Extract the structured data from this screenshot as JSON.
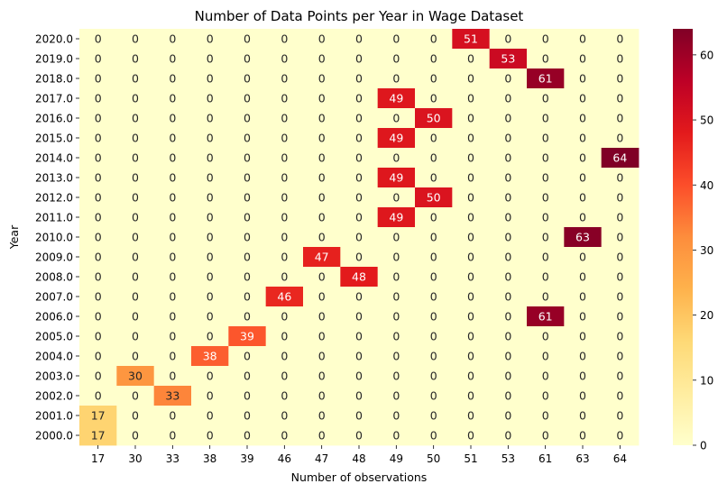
{
  "chart_data": {
    "type": "heatmap",
    "title": "Number of Data Points per Year in Wage Dataset",
    "xlabel": "Number of observations",
    "ylabel": "Year",
    "x_categories": [
      "17",
      "30",
      "33",
      "38",
      "39",
      "46",
      "47",
      "48",
      "49",
      "50",
      "51",
      "53",
      "61",
      "63",
      "64"
    ],
    "y_categories": [
      "2020.0",
      "2019.0",
      "2018.0",
      "2017.0",
      "2016.0",
      "2015.0",
      "2014.0",
      "2013.0",
      "2012.0",
      "2011.0",
      "2010.0",
      "2009.0",
      "2008.0",
      "2007.0",
      "2006.0",
      "2005.0",
      "2004.0",
      "2003.0",
      "2002.0",
      "2001.0",
      "2000.0"
    ],
    "values": [
      [
        0,
        0,
        0,
        0,
        0,
        0,
        0,
        0,
        0,
        0,
        51,
        0,
        0,
        0,
        0
      ],
      [
        0,
        0,
        0,
        0,
        0,
        0,
        0,
        0,
        0,
        0,
        0,
        53,
        0,
        0,
        0
      ],
      [
        0,
        0,
        0,
        0,
        0,
        0,
        0,
        0,
        0,
        0,
        0,
        0,
        61,
        0,
        0
      ],
      [
        0,
        0,
        0,
        0,
        0,
        0,
        0,
        0,
        49,
        0,
        0,
        0,
        0,
        0,
        0
      ],
      [
        0,
        0,
        0,
        0,
        0,
        0,
        0,
        0,
        0,
        50,
        0,
        0,
        0,
        0,
        0
      ],
      [
        0,
        0,
        0,
        0,
        0,
        0,
        0,
        0,
        49,
        0,
        0,
        0,
        0,
        0,
        0
      ],
      [
        0,
        0,
        0,
        0,
        0,
        0,
        0,
        0,
        0,
        0,
        0,
        0,
        0,
        0,
        64
      ],
      [
        0,
        0,
        0,
        0,
        0,
        0,
        0,
        0,
        49,
        0,
        0,
        0,
        0,
        0,
        0
      ],
      [
        0,
        0,
        0,
        0,
        0,
        0,
        0,
        0,
        0,
        50,
        0,
        0,
        0,
        0,
        0
      ],
      [
        0,
        0,
        0,
        0,
        0,
        0,
        0,
        0,
        49,
        0,
        0,
        0,
        0,
        0,
        0
      ],
      [
        0,
        0,
        0,
        0,
        0,
        0,
        0,
        0,
        0,
        0,
        0,
        0,
        0,
        63,
        0
      ],
      [
        0,
        0,
        0,
        0,
        0,
        0,
        47,
        0,
        0,
        0,
        0,
        0,
        0,
        0,
        0
      ],
      [
        0,
        0,
        0,
        0,
        0,
        0,
        0,
        48,
        0,
        0,
        0,
        0,
        0,
        0,
        0
      ],
      [
        0,
        0,
        0,
        0,
        0,
        46,
        0,
        0,
        0,
        0,
        0,
        0,
        0,
        0,
        0
      ],
      [
        0,
        0,
        0,
        0,
        0,
        0,
        0,
        0,
        0,
        0,
        0,
        0,
        61,
        0,
        0
      ],
      [
        0,
        0,
        0,
        0,
        39,
        0,
        0,
        0,
        0,
        0,
        0,
        0,
        0,
        0,
        0
      ],
      [
        0,
        0,
        0,
        38,
        0,
        0,
        0,
        0,
        0,
        0,
        0,
        0,
        0,
        0,
        0
      ],
      [
        0,
        30,
        0,
        0,
        0,
        0,
        0,
        0,
        0,
        0,
        0,
        0,
        0,
        0,
        0
      ],
      [
        0,
        0,
        33,
        0,
        0,
        0,
        0,
        0,
        0,
        0,
        0,
        0,
        0,
        0,
        0
      ],
      [
        17,
        0,
        0,
        0,
        0,
        0,
        0,
        0,
        0,
        0,
        0,
        0,
        0,
        0,
        0
      ],
      [
        17,
        0,
        0,
        0,
        0,
        0,
        0,
        0,
        0,
        0,
        0,
        0,
        0,
        0,
        0
      ]
    ],
    "colorbar": {
      "min": 0,
      "max": 64,
      "ticks": [
        0,
        10,
        20,
        30,
        40,
        50,
        60
      ]
    },
    "colormap": "YlOrRd",
    "colormap_stops": [
      "#ffffcc",
      "#ffeda0",
      "#fed976",
      "#feb24c",
      "#fd8d3c",
      "#fc4e2a",
      "#e31a1c",
      "#bd0026",
      "#800026"
    ],
    "annotation_colors": {
      "dark": "#262626",
      "light": "#ffffff"
    }
  }
}
